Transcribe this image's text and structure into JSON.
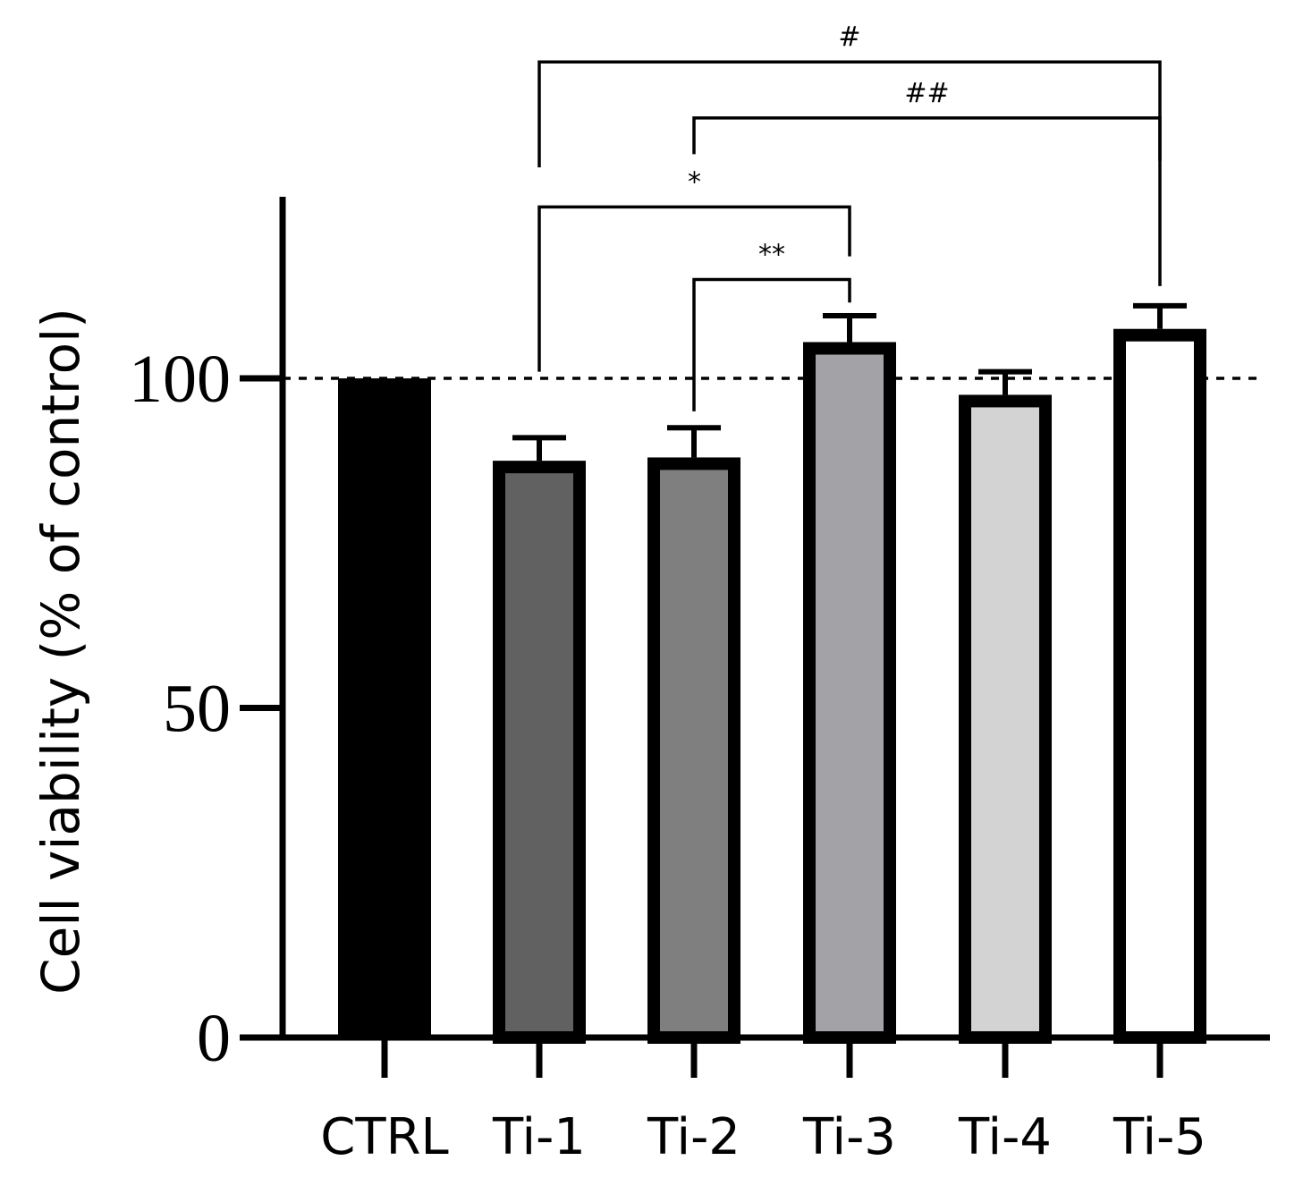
{
  "chart_data": {
    "type": "bar",
    "title": "",
    "xlabel": "",
    "ylabel": "Cell viability (% of control)",
    "ylim": [
      0,
      128
    ],
    "yticks": [
      0,
      50,
      100
    ],
    "reference_line": 100,
    "categories": [
      "CTRL",
      "Ti-1",
      "Ti-2",
      "Ti-3",
      "Ti-4",
      "Ti-5"
    ],
    "values": [
      100,
      87.5,
      88,
      105.5,
      97.5,
      107.5
    ],
    "errors": [
      0,
      3.5,
      4.5,
      4.0,
      3.5,
      3.5
    ],
    "fill_colors": [
      "#000000",
      "#616161",
      "#7f7f7f",
      "#a3a3a7",
      "#d3d3d3",
      "#ffffff"
    ],
    "significance": [
      {
        "from": 1,
        "to": 5,
        "label": "#",
        "y": 148
      },
      {
        "from": 2,
        "to": 5,
        "label": "##",
        "y": 139.5
      },
      {
        "from": 1,
        "to": 3,
        "label": "*",
        "y": 126
      },
      {
        "from": 2,
        "to": 3,
        "label": "**",
        "y": 115
      }
    ]
  }
}
